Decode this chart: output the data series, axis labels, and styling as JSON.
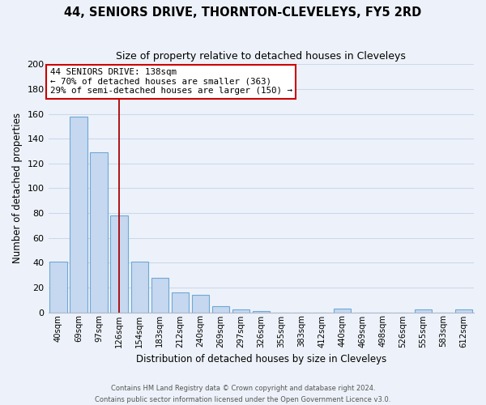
{
  "title": "44, SENIORS DRIVE, THORNTON-CLEVELEYS, FY5 2RD",
  "subtitle": "Size of property relative to detached houses in Cleveleys",
  "xlabel": "Distribution of detached houses by size in Cleveleys",
  "ylabel": "Number of detached properties",
  "bar_color": "#c5d8f0",
  "bar_edge_color": "#6fa8d4",
  "categories": [
    "40sqm",
    "69sqm",
    "97sqm",
    "126sqm",
    "154sqm",
    "183sqm",
    "212sqm",
    "240sqm",
    "269sqm",
    "297sqm",
    "326sqm",
    "355sqm",
    "383sqm",
    "412sqm",
    "440sqm",
    "469sqm",
    "498sqm",
    "526sqm",
    "555sqm",
    "583sqm",
    "612sqm"
  ],
  "values": [
    41,
    158,
    129,
    78,
    41,
    28,
    16,
    14,
    5,
    2,
    1,
    0,
    0,
    0,
    3,
    0,
    0,
    0,
    2,
    0,
    2
  ],
  "ylim": [
    0,
    200
  ],
  "yticks": [
    0,
    20,
    40,
    60,
    80,
    100,
    120,
    140,
    160,
    180,
    200
  ],
  "annotation_title": "44 SENIORS DRIVE: 138sqm",
  "annotation_line1": "← 70% of detached houses are smaller (363)",
  "annotation_line2": "29% of semi-detached houses are larger (150) →",
  "annotation_box_color": "#ffffff",
  "annotation_box_edge_color": "#cc0000",
  "property_line_color": "#aa0000",
  "grid_color": "#cdd8ea",
  "background_color": "#edf2fa",
  "footer_line1": "Contains HM Land Registry data © Crown copyright and database right 2024.",
  "footer_line2": "Contains public sector information licensed under the Open Government Licence v3.0."
}
